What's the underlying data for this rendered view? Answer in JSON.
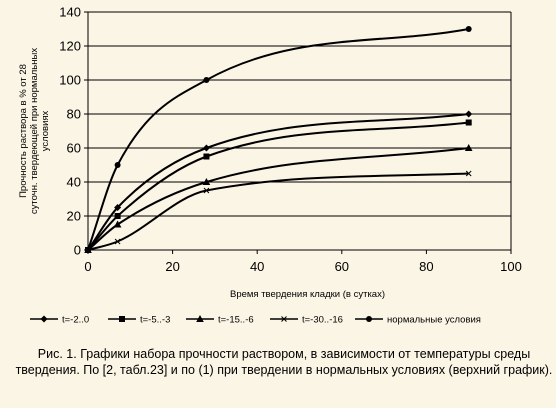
{
  "chart_data": {
    "type": "line",
    "title": "",
    "xlabel": "Время твердения кладки (в сутках)",
    "ylabel": [
      "Прочность раствора в % от 28",
      "суточн. твердеющей при нормальных",
      "условиях"
    ],
    "xlim": [
      0,
      100
    ],
    "ylim": [
      0,
      140
    ],
    "xticks": [
      0,
      20,
      40,
      60,
      80,
      100
    ],
    "yticks": [
      0,
      20,
      40,
      60,
      80,
      100,
      120,
      140
    ],
    "grid": true,
    "legend_position": "bottom",
    "series": [
      {
        "name": "t=-2..0",
        "marker": "diamond",
        "points": [
          [
            0,
            0
          ],
          [
            7,
            25
          ],
          [
            28,
            60
          ],
          [
            90,
            80
          ]
        ]
      },
      {
        "name": "t=-5..-3",
        "marker": "square",
        "points": [
          [
            0,
            0
          ],
          [
            7,
            20
          ],
          [
            28,
            55
          ],
          [
            90,
            75
          ]
        ]
      },
      {
        "name": "t=-15..-6",
        "marker": "triangle",
        "points": [
          [
            0,
            0
          ],
          [
            7,
            15
          ],
          [
            28,
            40
          ],
          [
            90,
            60
          ]
        ]
      },
      {
        "name": "t=-30..-16",
        "marker": "cross",
        "points": [
          [
            0,
            0
          ],
          [
            7,
            5
          ],
          [
            28,
            35
          ],
          [
            90,
            45
          ]
        ]
      },
      {
        "name": "нормальные условия",
        "marker": "circle",
        "points": [
          [
            0,
            0
          ],
          [
            7,
            50
          ],
          [
            28,
            100
          ],
          [
            90,
            130
          ]
        ]
      }
    ]
  },
  "caption": "Рис. 1. Графики набора прочности раствором, в зависимости от температуры среды твердения. По [2, табл.23] и по (1) при твердении в нормальных условиях (верхний график)."
}
